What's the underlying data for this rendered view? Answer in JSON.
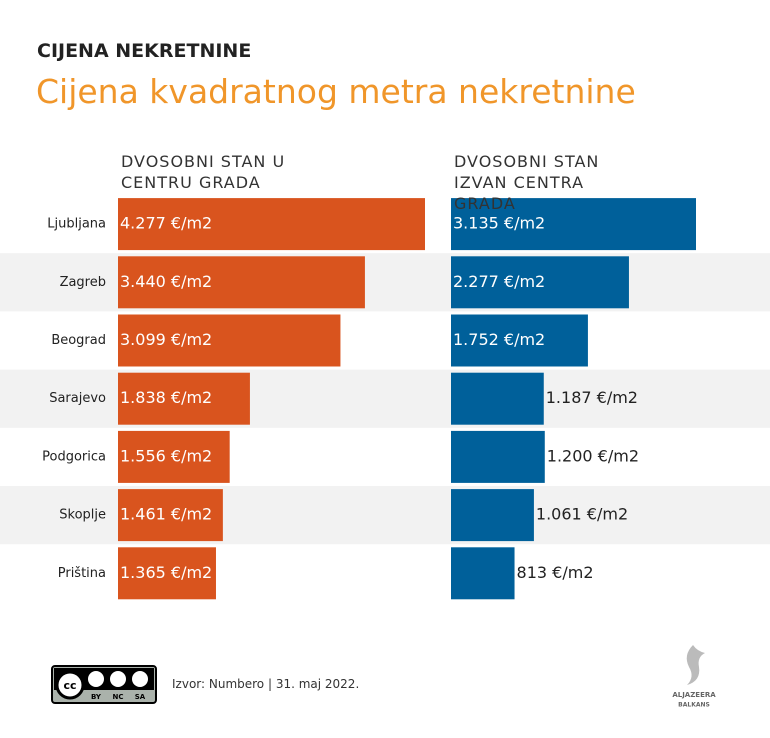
{
  "header": {
    "kicker": "CIJENA NEKRETNINE",
    "title": "Cijena kvadratnog metra nekretnine"
  },
  "chart_data": {
    "type": "bar",
    "orientation": "horizontal",
    "layout": "panels",
    "categories": [
      "Ljubljana",
      "Zagreb",
      "Beograd",
      "Sarajevo",
      "Podgorica",
      "Skoplje",
      "Priština"
    ],
    "series": [
      {
        "name": "DVOSOBNI STAN U CENTRU GRADA",
        "color": "#d9541e",
        "values": [
          4277,
          3440,
          3099,
          1838,
          1556,
          1461,
          1365
        ],
        "value_labels": [
          "4.277 €/m2",
          "3.440 €/m2",
          "3.099 €/m2",
          "1.838 €/m2",
          "1.556 €/m2",
          "1.461 €/m2",
          "1.365 €/m2"
        ]
      },
      {
        "name": "DVOSOBNI STAN IZVAN CENTRA GRADA",
        "color": "#00609a",
        "values": [
          3135,
          2277,
          1752,
          1187,
          1200,
          1061,
          813
        ],
        "value_labels": [
          "3.135 €/m2",
          "2.277 €/m2",
          "1.752 €/m2",
          "1.187 €/m2",
          "1.200 €/m2",
          "1.061 €/m2",
          "813 €/m2"
        ]
      }
    ]
  },
  "footer": {
    "license": [
      "BY",
      "NC",
      "SA"
    ],
    "source": "Izvor: Numbero | 31. maj 2022.",
    "logo": "ALJAZEERA",
    "logo_sub": "BALKANS"
  }
}
